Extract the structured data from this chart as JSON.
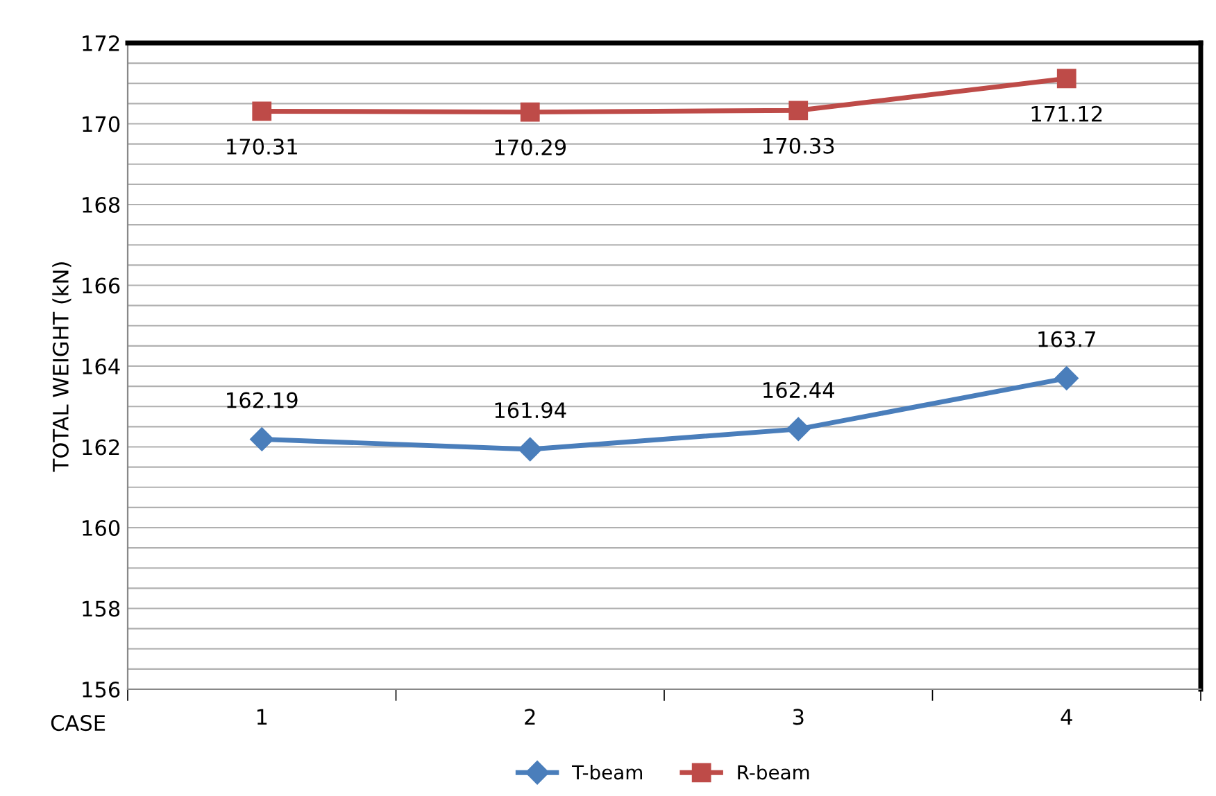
{
  "chart_data": {
    "type": "line",
    "xlabel": "CASE",
    "ylabel": "TOTAL WEIGHT (kN)",
    "categories": [
      "1",
      "2",
      "3",
      "4"
    ],
    "series": [
      {
        "name": "T-beam",
        "color": "#4a7ebb",
        "marker": "diamond",
        "values": [
          162.19,
          161.94,
          162.44,
          163.7
        ]
      },
      {
        "name": "R-beam",
        "color": "#be4b48",
        "marker": "square",
        "values": [
          170.31,
          170.29,
          170.33,
          171.12
        ]
      }
    ],
    "ylim": [
      156,
      172
    ],
    "yticks": [
      156,
      {
        "value": 156.5,
        "label": null
      },
      {
        "value": 157,
        "label": null
      },
      {
        "value": 157.5,
        "label": null
      },
      158,
      {
        "value": 158.5,
        "label": null
      },
      {
        "value": 159,
        "label": null
      },
      {
        "value": 159.5,
        "label": null
      },
      160,
      {
        "value": 160.5,
        "label": null
      },
      {
        "value": 161,
        "label": null
      },
      {
        "value": 161.5,
        "label": null
      },
      162,
      {
        "value": 162.5,
        "label": null
      },
      {
        "value": 163,
        "label": null
      },
      {
        "value": 163.5,
        "label": null
      },
      164,
      {
        "value": 164.5,
        "label": null
      },
      {
        "value": 165,
        "label": null
      },
      {
        "value": 165.5,
        "label": null
      },
      166,
      {
        "value": 166.5,
        "label": null
      },
      {
        "value": 167,
        "label": null
      },
      {
        "value": 167.5,
        "label": null
      },
      168,
      {
        "value": 168.5,
        "label": null
      },
      {
        "value": 169,
        "label": null
      },
      {
        "value": 169.5,
        "label": null
      },
      170,
      {
        "value": 170.5,
        "label": null
      },
      {
        "value": 171,
        "label": null
      },
      {
        "value": 171.5,
        "label": null
      },
      172
    ],
    "grid": "y",
    "legend": "bottom",
    "data_labels": true,
    "line_style": "solid"
  }
}
